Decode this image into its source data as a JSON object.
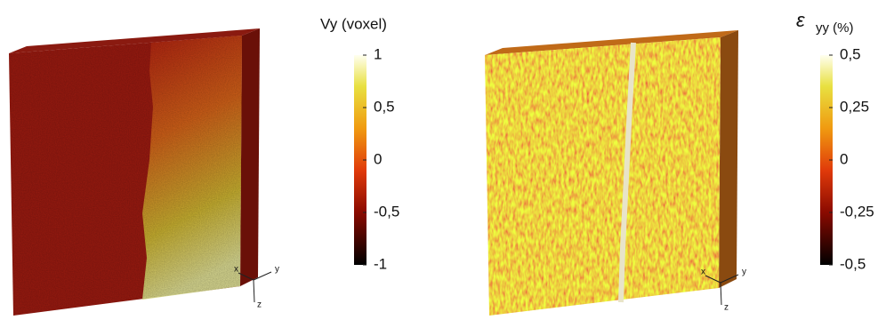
{
  "panels": [
    {
      "colorbar": {
        "title": "Vy (voxel)",
        "range": [
          -1,
          1
        ],
        "ticks": [
          1,
          {
            "value": 0.5,
            "label": "0,5"
          },
          0,
          {
            "value": -0.5,
            "label": "-0,5"
          },
          -1
        ]
      },
      "axes": [
        "x",
        "y",
        "z"
      ]
    },
    {
      "colorbar": {
        "symbol": "ε",
        "title": "yy (%)",
        "range": [
          -0.5,
          0.5
        ],
        "ticks": [
          {
            "value": 0.5,
            "label": "0,5"
          },
          {
            "value": 0.25,
            "label": "0,25"
          },
          0,
          {
            "value": -0.25,
            "label": "-0,25"
          },
          {
            "value": -0.5,
            "label": "-0,5"
          }
        ]
      },
      "axes": [
        "x",
        "y",
        "z"
      ]
    }
  ]
}
